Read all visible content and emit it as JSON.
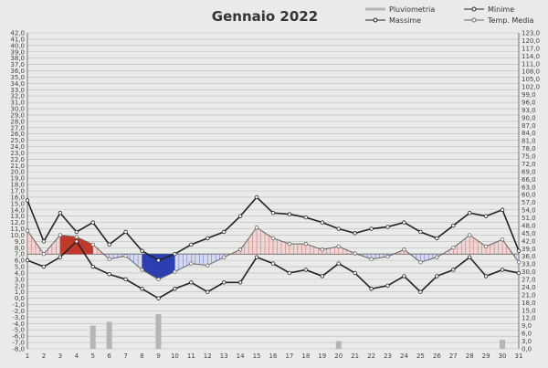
{
  "chart_data": {
    "type": "line",
    "title": "Gennaio 2022",
    "legend": [
      {
        "key": "pluviometria",
        "label": "Pluviometria"
      },
      {
        "key": "minime",
        "label": "Minime"
      },
      {
        "key": "massime",
        "label": "Massime"
      },
      {
        "key": "media",
        "label": "Temp. Media"
      }
    ],
    "legend_position": "top-right",
    "grid": true,
    "x": [
      1,
      2,
      3,
      4,
      5,
      6,
      7,
      8,
      9,
      10,
      11,
      12,
      13,
      14,
      15,
      16,
      17,
      18,
      19,
      20,
      21,
      22,
      23,
      24,
      25,
      26,
      27,
      28,
      29,
      30,
      31
    ],
    "x_labels": [
      "1",
      "2",
      "3",
      "4",
      "5",
      "6",
      "7",
      "8",
      "9",
      "10",
      "11",
      "12",
      "13",
      "14",
      "15",
      "16",
      "17",
      "18",
      "19",
      "20",
      "21",
      "22",
      "23",
      "24",
      "25",
      "26",
      "27",
      "28",
      "29",
      "30",
      "31"
    ],
    "ylim_left": [
      -8,
      42
    ],
    "ylim_right": [
      0,
      123
    ],
    "y_left_ticks": [
      "42,0",
      "41,0",
      "40,0",
      "39,0",
      "38,0",
      "37,0",
      "36,0",
      "35,0",
      "34,0",
      "33,0",
      "32,0",
      "31,0",
      "30,0",
      "29,0",
      "28,0",
      "27,0",
      "26,0",
      "25,0",
      "24,0",
      "23,0",
      "22,0",
      "21,0",
      "20,0",
      "19,0",
      "18,0",
      "17,0",
      "16,0",
      "15,0",
      "14,0",
      "13,0",
      "12,0",
      "11,0",
      "10,0",
      "9,0",
      "8,0",
      "7,0",
      "6,0",
      "5,0",
      "4,0",
      "3,0",
      "2,0",
      "1,0",
      "0,0",
      "-1,0",
      "-2,0",
      "-3,0",
      "-4,0",
      "-5,0",
      "-6,0",
      "-7,0",
      "-8,0"
    ],
    "y_right_ticks": [
      "123,0",
      "120,0",
      "117,0",
      "114,0",
      "111,0",
      "108,0",
      "105,0",
      "102,0",
      "99,0",
      "96,0",
      "93,0",
      "90,0",
      "87,0",
      "84,0",
      "81,0",
      "78,0",
      "75,0",
      "72,0",
      "69,0",
      "66,0",
      "63,0",
      "60,0",
      "57,0",
      "54,0",
      "51,0",
      "48,0",
      "45,0",
      "42,0",
      "39,0",
      "36,0",
      "33,0",
      "30,0",
      "27,0",
      "24,0",
      "21,0",
      "18,0",
      "15,0",
      "12,0",
      "9,0",
      "6,0",
      "3,0",
      "0,0"
    ],
    "reference_temp": 7.0,
    "series": [
      {
        "key": "massime",
        "name": "Massime",
        "color": "#222222",
        "values": [
          15.5,
          9.0,
          13.5,
          10.5,
          12.0,
          8.5,
          10.5,
          7.5,
          6.0,
          7.0,
          8.5,
          9.5,
          10.5,
          13.0,
          16.0,
          13.5,
          13.3,
          12.8,
          12.0,
          11.0,
          10.3,
          11.0,
          11.3,
          12.0,
          10.5,
          9.5,
          11.5,
          13.5,
          13.0,
          14.0,
          7.5
        ]
      },
      {
        "key": "minime",
        "name": "Minime",
        "color": "#222222",
        "values": [
          6.0,
          5.0,
          6.5,
          9.0,
          5.0,
          3.8,
          3.0,
          1.5,
          0.0,
          1.5,
          2.5,
          1.0,
          2.5,
          2.5,
          6.5,
          5.5,
          4.0,
          4.5,
          3.5,
          5.5,
          4.0,
          1.5,
          2.0,
          3.5,
          1.0,
          3.5,
          4.5,
          6.5,
          3.5,
          4.5,
          4.0
        ]
      },
      {
        "key": "media",
        "name": "Temp. Media",
        "color": "#666666",
        "values": [
          10.7,
          7.0,
          10.0,
          9.7,
          8.5,
          6.2,
          6.7,
          4.5,
          3.0,
          4.2,
          5.5,
          5.2,
          6.5,
          7.7,
          11.2,
          9.5,
          8.6,
          8.6,
          7.7,
          8.2,
          7.1,
          6.2,
          6.6,
          7.7,
          5.7,
          6.5,
          8.0,
          10.0,
          8.2,
          9.3,
          5.7
        ]
      },
      {
        "key": "pluviometria",
        "name": "Pluviometria",
        "color": "#b5b5b5",
        "values": [
          0,
          0,
          0,
          0,
          9.0,
          10.5,
          0,
          0,
          13.5,
          0,
          0,
          0,
          0,
          0,
          0,
          0,
          0,
          0,
          0,
          3.0,
          0,
          0,
          0,
          0,
          0,
          0,
          0,
          0,
          0,
          3.5,
          0
        ]
      }
    ],
    "colors": {
      "above": "#c0392b",
      "below": "#2c3fb0",
      "grid": "#bbbbbb",
      "axis": "#555555"
    }
  }
}
